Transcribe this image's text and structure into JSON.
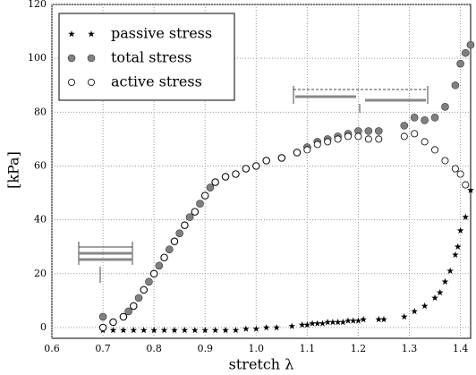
{
  "chart_data": {
    "type": "scatter",
    "x_label": "stretch λ",
    "y_label": "[kPa]",
    "xlim": [
      0.6,
      1.42
    ],
    "ylim": [
      -4,
      120
    ],
    "xticks": [
      0.6,
      0.7,
      0.8,
      0.9,
      {
        "value": 1,
        "label": "1.0"
      },
      1.1,
      1.2,
      1.3,
      1.4
    ],
    "yticks": [
      0,
      20,
      40,
      60,
      80,
      100,
      120
    ],
    "grid": true,
    "legend": "upper left",
    "series": [
      {
        "name": "passive stress",
        "marker": "star",
        "color": "#000000",
        "x": [
          0.7,
          0.72,
          0.74,
          0.76,
          0.78,
          0.8,
          0.82,
          0.84,
          0.86,
          0.88,
          0.9,
          0.92,
          0.94,
          0.96,
          0.98,
          1.0,
          1.02,
          1.04,
          1.07,
          1.09,
          1.1,
          1.11,
          1.12,
          1.13,
          1.14,
          1.15,
          1.16,
          1.17,
          1.18,
          1.19,
          1.2,
          1.21,
          1.24,
          1.25,
          1.29,
          1.31,
          1.33,
          1.35,
          1.36,
          1.37,
          1.38,
          1.39,
          1.395,
          1.4,
          1.41,
          1.42
        ],
        "values": [
          -1,
          -1,
          -1,
          -1,
          -1,
          -1,
          -1,
          -1,
          -1,
          -1,
          -1,
          -1,
          -1,
          -1,
          -0.5,
          -0.5,
          0,
          0,
          0.5,
          1,
          1,
          1.5,
          1.5,
          1.5,
          2,
          2,
          2,
          2,
          2.5,
          2.5,
          2.5,
          3,
          3,
          3,
          4,
          6,
          8,
          11,
          13,
          17,
          21,
          27,
          30,
          36,
          41,
          51
        ]
      },
      {
        "name": "total stress",
        "marker": "filled",
        "color": "#808080",
        "x": [
          0.7,
          0.7,
          0.72,
          0.74,
          0.75,
          0.76,
          0.77,
          0.78,
          0.79,
          0.8,
          0.81,
          0.82,
          0.83,
          0.84,
          0.85,
          0.86,
          0.87,
          0.88,
          0.89,
          0.9,
          0.91,
          0.92,
          0.94,
          0.96,
          0.98,
          1.0,
          1.02,
          1.05,
          1.08,
          1.1,
          1.12,
          1.14,
          1.16,
          1.18,
          1.2,
          1.22,
          1.24,
          1.29,
          1.31,
          1.33,
          1.35,
          1.37,
          1.39,
          1.4,
          1.41,
          1.42
        ],
        "values": [
          0,
          4,
          2,
          4,
          6,
          8,
          11,
          14,
          17,
          20,
          23,
          26,
          29,
          32,
          35,
          38,
          41,
          43,
          46,
          49,
          52,
          54,
          56,
          57,
          59,
          60,
          62,
          63,
          65,
          67,
          69,
          70,
          71,
          72,
          73,
          73,
          73,
          75,
          78,
          77,
          78,
          82,
          90,
          98,
          102,
          105
        ]
      },
      {
        "name": "active stress",
        "marker": "open",
        "color": "#000000",
        "x": [
          0.7,
          0.72,
          0.74,
          0.76,
          0.78,
          0.8,
          0.82,
          0.84,
          0.86,
          0.88,
          0.9,
          0.92,
          0.94,
          0.96,
          0.98,
          1.0,
          1.02,
          1.05,
          1.08,
          1.1,
          1.12,
          1.14,
          1.16,
          1.18,
          1.2,
          1.22,
          1.24,
          1.29,
          1.31,
          1.33,
          1.35,
          1.37,
          1.39,
          1.4,
          1.41
        ],
        "values": [
          0,
          2,
          4,
          8,
          14,
          20,
          26,
          32,
          38,
          43,
          49,
          54,
          56,
          57,
          59,
          60,
          62,
          63,
          65,
          66,
          68,
          69,
          70,
          71,
          71,
          70,
          70,
          71,
          72,
          69,
          66,
          62,
          59,
          57,
          53
        ]
      }
    ]
  }
}
